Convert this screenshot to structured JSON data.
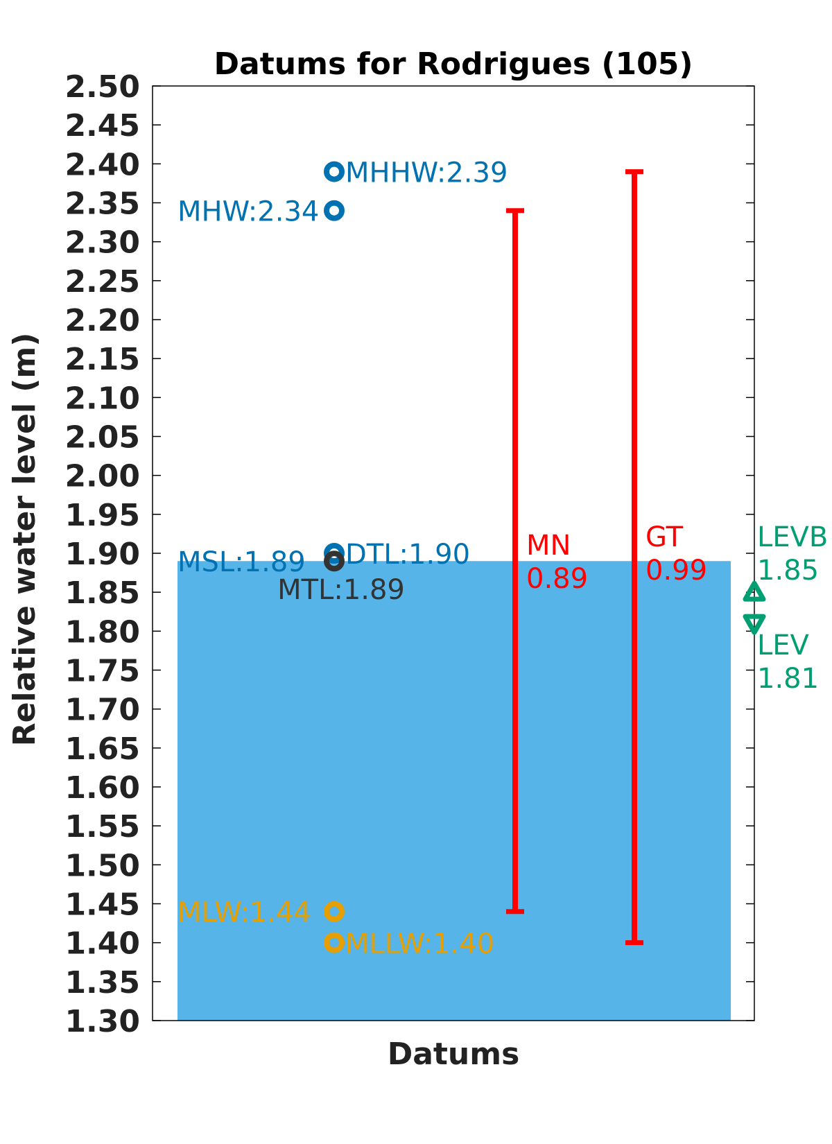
{
  "chart_data": {
    "type": "scatter",
    "title": "Datums for Rodrigues (105)",
    "xlabel": "Datums",
    "ylabel": "Relative water level (m)",
    "ylim": [
      1.3,
      2.5
    ],
    "yticks": [
      "1.30",
      "1.35",
      "1.40",
      "1.45",
      "1.50",
      "1.55",
      "1.60",
      "1.65",
      "1.70",
      "1.75",
      "1.80",
      "1.85",
      "1.90",
      "1.95",
      "2.00",
      "2.05",
      "2.10",
      "2.15",
      "2.20",
      "2.25",
      "2.30",
      "2.35",
      "2.40",
      "2.45",
      "2.50"
    ],
    "grid": false,
    "msl_fill": {
      "value": 1.89,
      "color": "#56B4E9"
    },
    "points": [
      {
        "name": "MHHW",
        "value": 2.39,
        "label": "MHHW:2.39",
        "color": "#0072B2",
        "marker": "circle",
        "label_side": "right"
      },
      {
        "name": "MHW",
        "value": 2.34,
        "label": "MHW:2.34",
        "color": "#0072B2",
        "marker": "circle",
        "label_side": "left"
      },
      {
        "name": "DTL",
        "value": 1.9,
        "label": "DTL:1.90",
        "color": "#0072B2",
        "marker": "circle",
        "label_side": "right"
      },
      {
        "name": "MSL",
        "value": 1.89,
        "label": "MSL:1.89",
        "color": "#0072B2",
        "marker": "none",
        "label_side": "left"
      },
      {
        "name": "MTL",
        "value": 1.89,
        "label": "MTL:1.89",
        "color": "#333333",
        "marker": "circle",
        "label_side": "below"
      },
      {
        "name": "MLW",
        "value": 1.44,
        "label": "MLW:1.44",
        "color": "#E69F00",
        "marker": "circle",
        "label_side": "left"
      },
      {
        "name": "MLLW",
        "value": 1.4,
        "label": "MLLW:1.40",
        "color": "#E69F00",
        "marker": "circle",
        "label_side": "right"
      }
    ],
    "ranges": [
      {
        "name": "MN",
        "low": 1.44,
        "high": 2.34,
        "value_label": "0.89",
        "color": "#FF0000"
      },
      {
        "name": "GT",
        "low": 1.4,
        "high": 2.39,
        "value_label": "0.99",
        "color": "#FF0000"
      }
    ],
    "extremes": [
      {
        "name": "LEVB",
        "value": 1.85,
        "value_label": "1.85",
        "marker": "triangle-up",
        "color": "#009E73"
      },
      {
        "name": "LEV",
        "value": 1.81,
        "value_label": "1.81",
        "marker": "triangle-down",
        "color": "#009E73"
      }
    ]
  }
}
